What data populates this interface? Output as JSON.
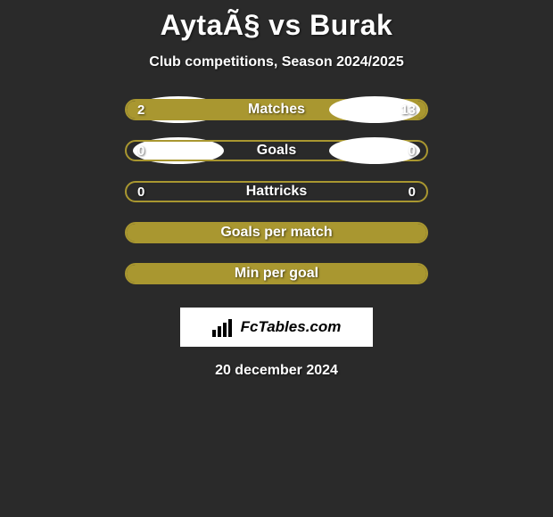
{
  "title": "AytaÃ§ vs Burak",
  "subtitle": "Club competitions, Season 2024/2025",
  "accent_color": "#a99730",
  "background_color": "#2a2a2a",
  "ellipse_color": "#ffffff",
  "rows": [
    {
      "label": "Matches",
      "left": "2",
      "right": "13",
      "left_pct": 18,
      "right_pct": 82,
      "show_values": true,
      "show_ellipses": true
    },
    {
      "label": "Goals",
      "left": "0",
      "right": "0",
      "left_pct": 0,
      "right_pct": 0,
      "show_values": true,
      "show_ellipses": true
    },
    {
      "label": "Hattricks",
      "left": "0",
      "right": "0",
      "left_pct": 0,
      "right_pct": 0,
      "show_values": true,
      "show_ellipses": false
    },
    {
      "label": "Goals per match",
      "left": "",
      "right": "",
      "left_pct": 100,
      "right_pct": 0,
      "show_values": false,
      "show_ellipses": false
    },
    {
      "label": "Min per goal",
      "left": "",
      "right": "",
      "left_pct": 100,
      "right_pct": 0,
      "show_values": false,
      "show_ellipses": false
    }
  ],
  "logo": {
    "text": "FcTables.com"
  },
  "date": "20 december 2024"
}
